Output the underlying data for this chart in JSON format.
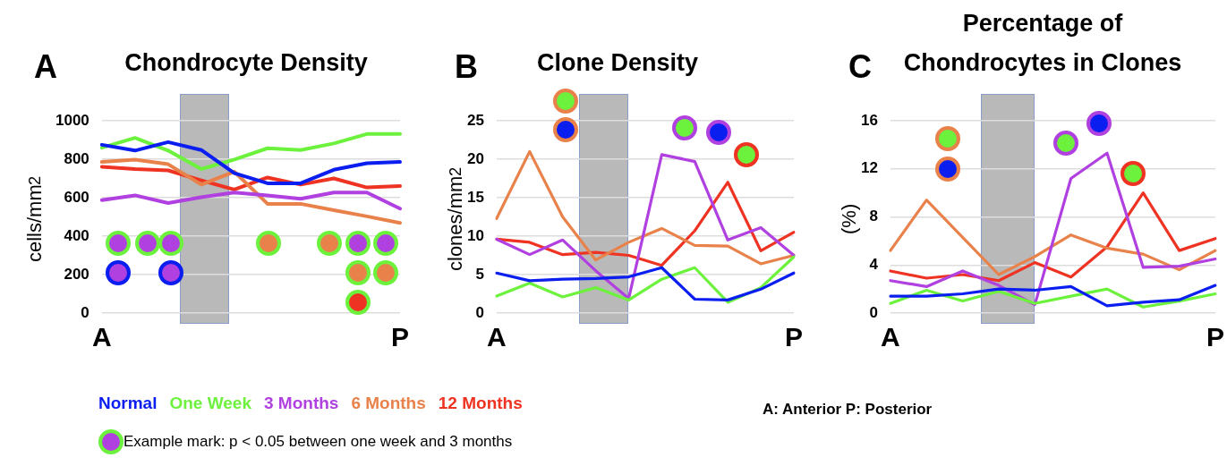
{
  "chart_data": [
    {
      "type": "line",
      "title": "Chondrocyte Density",
      "ylabel": "cells/mm$^{2}$",
      "annotations": [
        "A",
        "Example mark: p < 0.05 between one week and 3 months"
      ],
      "categories": [
        "A",
        null,
        null,
        null,
        null,
        null,
        null,
        null,
        null,
        "P"
      ],
      "ylim": [
        0,
        1000
      ],
      "yticks": [
        0,
        200,
        400,
        600,
        800,
        1000
      ],
      "grid": "y",
      "legend": "bottom",
      "series": [
        {
          "name": "Normal",
          "color": "#0a1ef0",
          "values": [
            875,
            845,
            889,
            848,
            727,
            675,
            675,
            745,
            779,
            786
          ]
        },
        {
          "name": "One Week",
          "color": "#6cf23c",
          "values": [
            860,
            911,
            845,
            749,
            798,
            857,
            848,
            882,
            931,
            931
          ]
        },
        {
          "name": "3 Months",
          "color": "#b040e0",
          "values": [
            587,
            612,
            572,
            602,
            627,
            612,
            594,
            627,
            627,
            543
          ]
        },
        {
          "name": "6 Months",
          "color": "#e8824a",
          "values": [
            786,
            798,
            774,
            668,
            735,
            568,
            568,
            535,
            503,
            469
          ]
        },
        {
          "name": "12 Months",
          "color": "#ee3322",
          "values": [
            761,
            749,
            742,
            690,
            642,
            705,
            668,
            700,
            653,
            661
          ]
        }
      ]
    },
    {
      "type": "line",
      "title": "Clone Density",
      "ylabel": "clones/mm$^{2}$",
      "annotations": [
        "B"
      ],
      "categories": [
        "A",
        null,
        null,
        null,
        null,
        null,
        null,
        null,
        null,
        "P"
      ],
      "ylim": [
        0,
        25
      ],
      "yticks": [
        0,
        5,
        10,
        15,
        20,
        25
      ],
      "grid": "y",
      "series": [
        {
          "color": "#0a1ef0",
          "values": [
            5.2,
            4.2,
            4.4,
            4.5,
            4.7,
            5.9,
            1.8,
            1.7,
            3.1,
            5.2
          ]
        },
        {
          "color": "#6cf23c",
          "values": [
            2.2,
            3.9,
            2.1,
            3.3,
            1.7,
            4.4,
            5.9,
            1.4,
            3.3,
            7.3
          ]
        },
        {
          "color": "#b040e0",
          "values": [
            9.6,
            7.6,
            9.5,
            5.5,
            1.9,
            20.6,
            19.7,
            9.5,
            11.1,
            7.5
          ]
        },
        {
          "color": "#e8824a",
          "values": [
            12.3,
            21.0,
            12.5,
            6.9,
            9.2,
            11.0,
            8.8,
            8.7,
            6.4,
            7.5
          ]
        },
        {
          "color": "#ee3322",
          "values": [
            9.6,
            9.2,
            7.6,
            7.9,
            7.5,
            6.2,
            10.7,
            17.0,
            8.1,
            10.5
          ]
        }
      ]
    },
    {
      "type": "line",
      "title": "Percentage of Chondrocytes in Clones",
      "ylabel": "(%)",
      "annotations": [
        "C",
        "A: Anterior P: Posterior"
      ],
      "categories": [
        "A",
        null,
        null,
        null,
        null,
        null,
        null,
        null,
        null,
        "P"
      ],
      "ylim": [
        0,
        16
      ],
      "yticks": [
        0,
        4,
        8,
        12,
        16
      ],
      "grid": "y",
      "series": [
        {
          "color": "#0a1ef0",
          "values": [
            1.4,
            1.4,
            1.6,
            2.0,
            1.9,
            2.2,
            0.6,
            0.9,
            1.1,
            2.3
          ]
        },
        {
          "color": "#6cf23c",
          "values": [
            0.8,
            1.9,
            1.0,
            1.8,
            0.8,
            1.4,
            2.0,
            0.5,
            1.0,
            1.6
          ]
        },
        {
          "color": "#b040e0",
          "values": [
            2.7,
            2.2,
            3.5,
            2.3,
            0.7,
            11.2,
            13.3,
            3.8,
            3.9,
            4.5
          ]
        },
        {
          "color": "#e8824a",
          "values": [
            5.2,
            9.4,
            6.3,
            3.2,
            4.7,
            6.5,
            5.4,
            4.9,
            3.6,
            5.2
          ]
        },
        {
          "color": "#ee3322",
          "values": [
            3.5,
            2.9,
            3.2,
            2.7,
            4.2,
            3.0,
            5.5,
            10.0,
            5.2,
            6.2
          ]
        }
      ]
    }
  ]
}
